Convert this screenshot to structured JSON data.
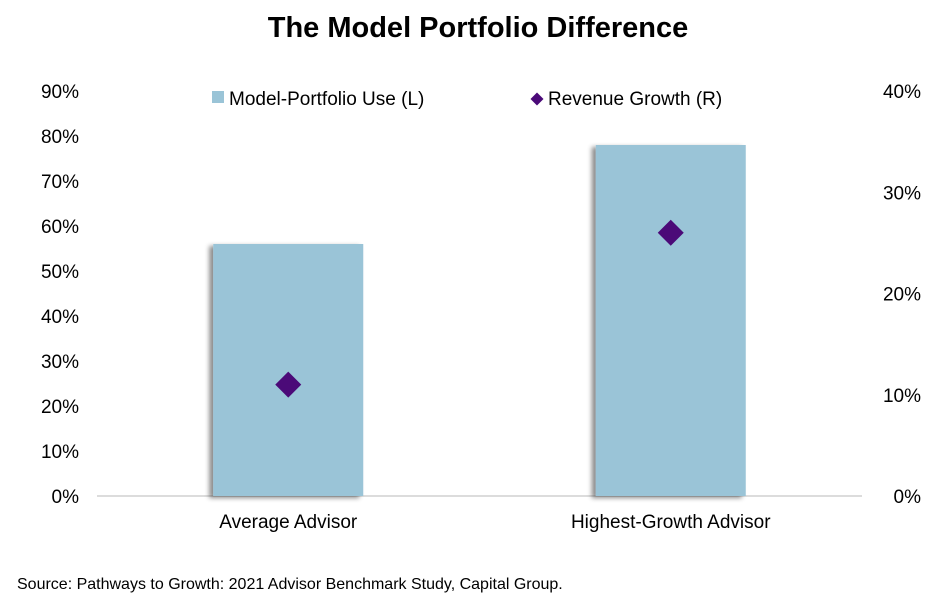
{
  "chart_data": {
    "type": "bar",
    "title": "The Model Portfolio Difference",
    "categories": [
      "Average Advisor",
      "Highest-Growth Advisor"
    ],
    "series": [
      {
        "name": "Model-Portfolio Use (L)",
        "kind": "bar",
        "axis": "left",
        "color": "#9AC4D7",
        "values": [
          56,
          78
        ]
      },
      {
        "name": "Revenue Growth (R)",
        "kind": "scatter",
        "marker": "diamond",
        "axis": "right",
        "color": "#4B0A78",
        "values": [
          11,
          26
        ]
      }
    ],
    "y_left": {
      "ylim": [
        0,
        90
      ],
      "ticks": [
        "0%",
        "10%",
        "20%",
        "30%",
        "40%",
        "50%",
        "60%",
        "70%",
        "80%",
        "90%"
      ]
    },
    "y_right": {
      "ylim": [
        0,
        40
      ],
      "ticks": [
        "0%",
        "10%",
        "20%",
        "30%",
        "40%"
      ]
    },
    "legend_position": "top",
    "grid": false,
    "source": "Source: Pathways to Growth: 2021 Advisor Benchmark Study, Capital Group."
  }
}
